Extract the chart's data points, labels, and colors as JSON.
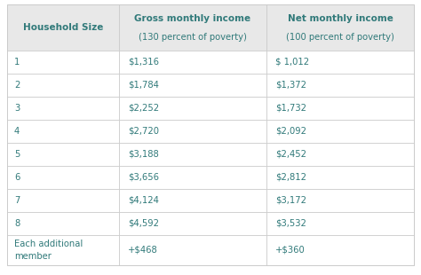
{
  "col_headers": [
    "Household Size",
    "Gross monthly income\n(130 percent of poverty)",
    "Net monthly income\n(100 percent of poverty)"
  ],
  "col_headers_line1": [
    "Household Size",
    "Gross monthly income",
    "Net monthly income"
  ],
  "col_headers_line2": [
    "",
    "(130 percent of poverty)",
    "(100 percent of poverty)"
  ],
  "rows": [
    [
      "1",
      "$1,316",
      "$ 1,012"
    ],
    [
      "2",
      "$1,784",
      "$1,372"
    ],
    [
      "3",
      "$2,252",
      "$1,732"
    ],
    [
      "4",
      "$2,720",
      "$2,092"
    ],
    [
      "5",
      "$3,188",
      "$2,452"
    ],
    [
      "6",
      "$3,656",
      "$2,812"
    ],
    [
      "7",
      "$4,124",
      "$3,172"
    ],
    [
      "8",
      "$4,592",
      "$3,532"
    ],
    [
      "Each additional\nmember",
      "+$468",
      "+$360"
    ]
  ],
  "header_bg": "#e8e8e8",
  "row_bg": "#ffffff",
  "text_color": "#317a7a",
  "border_color": "#c8c8c8",
  "figsize": [
    4.74,
    3.1
  ],
  "dpi": 100
}
